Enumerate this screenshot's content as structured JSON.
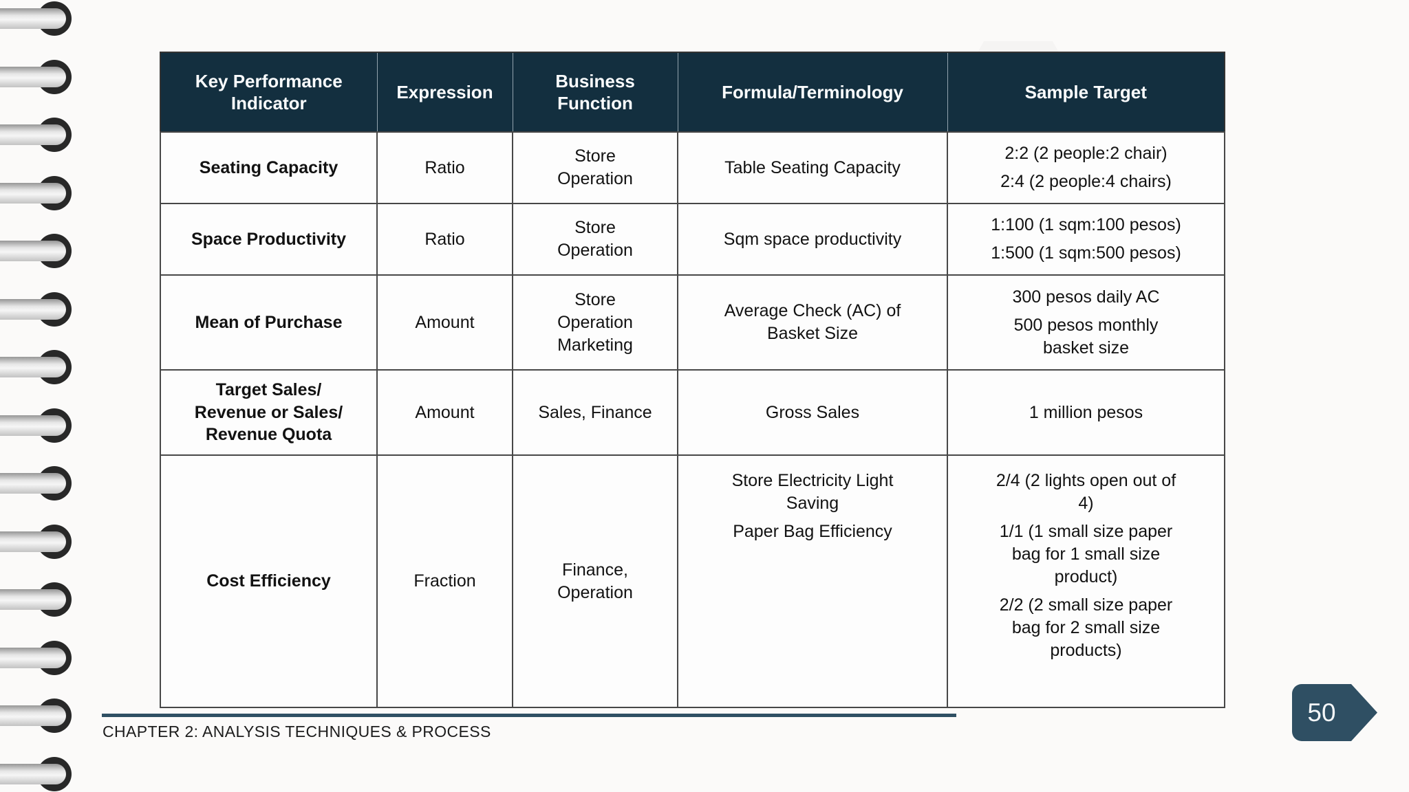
{
  "slide": {
    "footer_text": "CHAPTER 2: ANALYSIS TECHNIQUES & PROCESS",
    "page_number": "50"
  },
  "colors": {
    "header_bg": "#132f3f",
    "accent": "#2f4f63",
    "table_border": "#474747",
    "page_bg": "#fbfaf9"
  },
  "table": {
    "columns": [
      "Key Performance Indicator",
      "Expression",
      "Business Function",
      "Formula/Terminology",
      "Sample Target"
    ],
    "rows": [
      {
        "kpi": "Seating Capacity",
        "expression": "Ratio",
        "business_function": [
          "Store\nOperation"
        ],
        "formula": [
          "Table Seating Capacity"
        ],
        "sample_target": [
          "2:2 (2 people:2 chair)",
          "2:4 (2 people:4 chairs)"
        ]
      },
      {
        "kpi": "Space Productivity",
        "expression": "Ratio",
        "business_function": [
          "Store\nOperation"
        ],
        "formula": [
          "Sqm space productivity"
        ],
        "sample_target": [
          "1:100 (1 sqm:100 pesos)",
          "1:500 (1 sqm:500 pesos)"
        ]
      },
      {
        "kpi": "Mean of Purchase",
        "expression": "Amount",
        "business_function": [
          "Store\nOperation\nMarketing"
        ],
        "formula": [
          "Average Check (AC) of\nBasket Size"
        ],
        "sample_target": [
          "300 pesos daily AC",
          "500 pesos monthly\nbasket size"
        ]
      },
      {
        "kpi": "Target Sales/\nRevenue or Sales/\nRevenue Quota",
        "expression": "Amount",
        "business_function": [
          "Sales, Finance"
        ],
        "formula": [
          "Gross Sales"
        ],
        "sample_target": [
          "1 million pesos"
        ]
      },
      {
        "kpi": "Cost Efficiency",
        "expression": "Fraction",
        "business_function": [
          "Finance,\nOperation"
        ],
        "formula": [
          "Store Electricity Light\nSaving",
          "Paper Bag Efficiency"
        ],
        "sample_target": [
          "2/4 (2 lights open out of\n4)",
          "1/1 (1 small size paper\nbag for 1 small size\nproduct)",
          "2/2 (2 small size paper\nbag for 2 small size\nproducts)"
        ]
      }
    ]
  }
}
